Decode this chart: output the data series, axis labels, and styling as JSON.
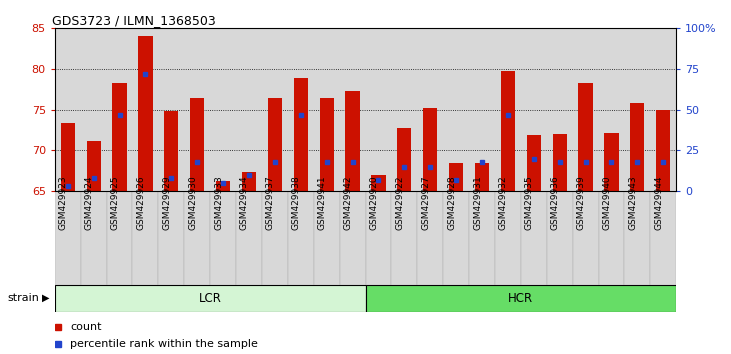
{
  "title": "GDS3723 / ILMN_1368503",
  "samples": [
    "GSM429923",
    "GSM429924",
    "GSM429925",
    "GSM429926",
    "GSM429929",
    "GSM429930",
    "GSM429933",
    "GSM429934",
    "GSM429937",
    "GSM429938",
    "GSM429941",
    "GSM429942",
    "GSM429920",
    "GSM429922",
    "GSM429927",
    "GSM429928",
    "GSM429931",
    "GSM429932",
    "GSM429935",
    "GSM429936",
    "GSM429939",
    "GSM429940",
    "GSM429943",
    "GSM429944"
  ],
  "counts": [
    73.4,
    71.2,
    78.3,
    84.0,
    74.8,
    76.4,
    66.3,
    67.4,
    76.4,
    78.9,
    76.4,
    77.3,
    67.0,
    72.8,
    75.2,
    68.5,
    68.4,
    79.8,
    71.9,
    72.0,
    78.3,
    72.1,
    75.8,
    75.0
  ],
  "percentile_ranks": [
    3.0,
    8.0,
    47.0,
    72.0,
    8.0,
    18.0,
    5.0,
    10.0,
    18.0,
    47.0,
    18.0,
    18.0,
    7.0,
    15.0,
    15.0,
    7.0,
    18.0,
    47.0,
    20.0,
    18.0,
    18.0,
    18.0,
    18.0,
    18.0
  ],
  "groups": [
    {
      "label": "LCR",
      "start": 0,
      "end": 12,
      "color": "#d4f5d4"
    },
    {
      "label": "HCR",
      "start": 12,
      "end": 24,
      "color": "#66dd66"
    }
  ],
  "ymin": 65,
  "ymax": 85,
  "yticks_left": [
    65,
    70,
    75,
    80,
    85
  ],
  "yticks_right": [
    0,
    25,
    50,
    75,
    100
  ],
  "bar_color": "#cc1100",
  "dot_color": "#2244cc",
  "col_bg_color": "#d8d8d8",
  "legend_count_color": "#cc1100",
  "legend_pct_color": "#2244cc",
  "strain_label": "strain"
}
